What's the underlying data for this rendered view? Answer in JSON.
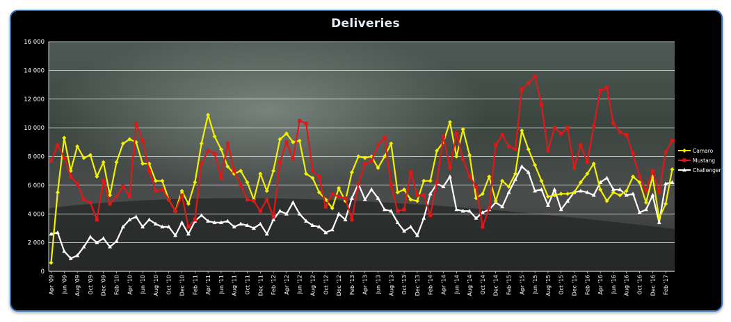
{
  "chart_data": {
    "type": "line",
    "title": "Deliveries",
    "ylim": [
      0,
      16000
    ],
    "yticks": [
      "0",
      "2 000",
      "4 000",
      "6 000",
      "8 000",
      "10 000",
      "12 000",
      "14 000",
      "16 000"
    ],
    "ytick_values": [
      0,
      2000,
      4000,
      6000,
      8000,
      10000,
      12000,
      14000,
      16000
    ],
    "grid": true,
    "legend_position": "right",
    "x": [
      "Apr '09",
      "May '09",
      "Jun '09",
      "Jul '09",
      "Aug '09",
      "Sep '09",
      "Oct '09",
      "Nov '09",
      "Dec '09",
      "Jan '10",
      "Feb '10",
      "Mar '10",
      "Apr '10",
      "May '10",
      "Jun '10",
      "Jul '10",
      "Aug '10",
      "Sep '10",
      "Oct '10",
      "Nov '10",
      "Dec '10",
      "Jan '11",
      "Feb '11",
      "Mar '11",
      "Apr '11",
      "May '11",
      "Jun '11",
      "Jul '11",
      "Aug '11",
      "Sep '11",
      "Oct '11",
      "Nov '11",
      "Dec '11",
      "Jan '12",
      "Feb '12",
      "Mar '12",
      "Apr '12",
      "May '12",
      "Jun '12",
      "Jul '12",
      "Aug '12",
      "Sep '12",
      "Oct '12",
      "Nov '12",
      "Dec '12",
      "Jan '13",
      "Feb '13",
      "Mar '13",
      "Apr '13",
      "May '13",
      "Jun '13",
      "Jul '13",
      "Aug '13",
      "Sep '13",
      "Oct '13",
      "Nov '13",
      "Dec '13",
      "Jan '14",
      "Feb '14",
      "Mar '14",
      "Apr '14",
      "May '14",
      "Jun '14",
      "Jul '14",
      "Aug '14",
      "Sep '14",
      "Oct '14",
      "Nov '14",
      "Dec '14",
      "Jan '15",
      "Feb '15",
      "Mar '15",
      "Apr '15",
      "May '15",
      "Jun '15",
      "Jul '15",
      "Aug '15",
      "Sep '15",
      "Oct '15",
      "Nov '15",
      "Dec '15",
      "Jan '16",
      "Feb '16",
      "Mar '16",
      "Apr '16",
      "May '16",
      "Jun '16",
      "Jul '16",
      "Aug '16",
      "Sep '16",
      "Oct '16",
      "Nov '16",
      "Dec '16",
      "Jan '17",
      "Feb '17",
      "Mar '17"
    ],
    "xtick_labels": [
      "Apr '09",
      "Jun '09",
      "Aug '09",
      "Oct '09",
      "Dec '09",
      "Feb '10",
      "Apr '10",
      "Jun '10",
      "Aug '10",
      "Oct '10",
      "Dec '10",
      "Feb '11",
      "Apr '11",
      "Jun '11",
      "Aug '11",
      "Oct '11",
      "Dec '11",
      "Feb '12",
      "Apr '12",
      "Jun '12",
      "Aug '12",
      "Oct '12",
      "Dec '12",
      "Feb '13",
      "Apr '13",
      "Jun '13",
      "Aug '13",
      "Oct '13",
      "Dec '13",
      "Feb '14",
      "Apr '14",
      "Jun '14",
      "Aug '14",
      "Oct '14",
      "Dec '14",
      "Feb '15",
      "Apr '15",
      "Jun '15",
      "Aug '15",
      "Oct '15",
      "Dec '15",
      "Feb '16",
      "Apr '16",
      "Jun '16",
      "Aug '16",
      "Oct '16",
      "Dec '16",
      "Feb '17"
    ],
    "series": [
      {
        "name": "Camaro",
        "color": "#f2f200",
        "values": [
          600,
          5500,
          9300,
          7000,
          8700,
          7900,
          8100,
          6600,
          7600,
          5300,
          7600,
          8900,
          9200,
          9000,
          7500,
          7500,
          6300,
          6300,
          5000,
          4200,
          5600,
          4700,
          6200,
          8900,
          10900,
          9400,
          8500,
          7300,
          6800,
          7000,
          6200,
          5000,
          6800,
          5600,
          7000,
          9200,
          9600,
          9000,
          9100,
          6800,
          6500,
          5500,
          5000,
          4400,
          5800,
          4900,
          6900,
          8000,
          7900,
          8000,
          7200,
          8000,
          8900,
          5500,
          5700,
          5000,
          4900,
          6300,
          6300,
          8400,
          9000,
          10400,
          8000,
          9900,
          8100,
          5100,
          5400,
          6600,
          4900,
          6300,
          5900,
          6800,
          9800,
          8500,
          7400,
          6300,
          5200,
          5300,
          5400,
          5400,
          5500,
          6200,
          6800,
          7500,
          5700,
          4900,
          5500,
          5300,
          5600,
          6600,
          6200,
          4800,
          6600,
          3700,
          4700,
          7100
        ]
      },
      {
        "name": "Mustang",
        "color": "#e01818",
        "values": [
          7700,
          8800,
          7900,
          6600,
          6100,
          5000,
          4800,
          3600,
          6300,
          4700,
          5200,
          5900,
          5200,
          10300,
          9100,
          7000,
          5600,
          5700,
          5000,
          4200,
          5300,
          3100,
          3600,
          7500,
          8400,
          8200,
          6500,
          8900,
          7000,
          6000,
          5000,
          4900,
          4200,
          5000,
          3800,
          7600,
          9000,
          7800,
          10500,
          10300,
          7000,
          6600,
          4500,
          5400,
          5200,
          5100,
          3600,
          6100,
          7500,
          7700,
          8800,
          9300,
          6000,
          4200,
          4300,
          6900,
          5300,
          5300,
          3900,
          6200,
          9400,
          7200,
          9600,
          7800,
          6600,
          5900,
          3100,
          4400,
          8800,
          9500,
          8700,
          8500,
          12700,
          13100,
          13600,
          11600,
          8400,
          10000,
          9600,
          10000,
          7200,
          8800,
          7600,
          10100,
          12600,
          12800,
          10300,
          9700,
          9500,
          8200,
          6600,
          5600,
          7000,
          5500,
          8300,
          9100
        ]
      },
      {
        "name": "Challenger",
        "color": "#ffffff",
        "values": [
          2600,
          2700,
          1400,
          900,
          1100,
          1700,
          2400,
          2000,
          2300,
          1700,
          2100,
          3100,
          3600,
          3800,
          3100,
          3600,
          3300,
          3100,
          3100,
          2500,
          3400,
          2600,
          3500,
          3900,
          3500,
          3400,
          3400,
          3500,
          3100,
          3300,
          3200,
          3000,
          3300,
          2600,
          3600,
          4200,
          4000,
          4800,
          4000,
          3500,
          3200,
          3100,
          2700,
          2900,
          4000,
          3600,
          5100,
          6100,
          5000,
          5700,
          5100,
          4300,
          4200,
          3400,
          2800,
          3100,
          2500,
          3700,
          5400,
          6100,
          5900,
          6600,
          4300,
          4200,
          4200,
          3700,
          4100,
          4300,
          4800,
          4500,
          5500,
          6400,
          7300,
          6900,
          5600,
          5700,
          4600,
          5700,
          4300,
          4900,
          5500,
          5600,
          5500,
          5300,
          6200,
          6500,
          5700,
          5700,
          5300,
          5400,
          4100,
          4300,
          5300,
          3400,
          6100,
          6200
        ]
      }
    ]
  }
}
